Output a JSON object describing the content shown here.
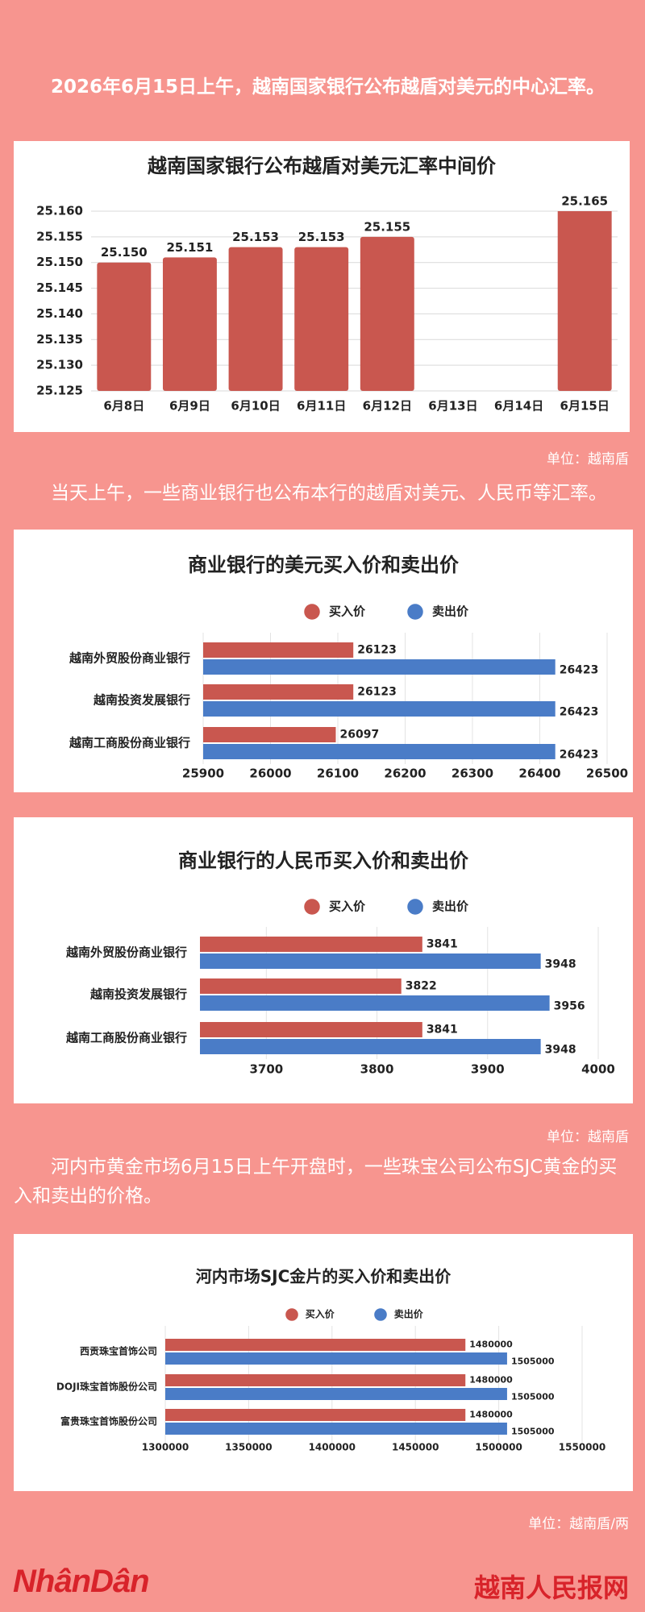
{
  "intro": "2026年6月15日上午，越南国家银行公布越盾对美元的中心汇率。",
  "unit_1": "单位：越南盾",
  "paragraph_2": "当天上午，一些商业银行也公布本行的越盾对美元、人民币等汇率。",
  "unit_2": "单位：越南盾",
  "paragraph_3": "河内市黄金市场6月15日上午开盘时，一些珠宝公司公布SJC黄金的买入和卖出的价格。",
  "unit_3": "单位：越南盾/两",
  "logo_left": "NhânDân",
  "logo_right": "越南人民报网",
  "chart_data": [
    {
      "type": "bar",
      "title": "越南国家银行公布越盾对美元汇率中间价",
      "categories": [
        "6月8日",
        "6月9日",
        "6月10日",
        "6月11日",
        "6月12日",
        "6月13日",
        "6月14日",
        "6月15日"
      ],
      "values": [
        25150,
        25151,
        25153,
        25153,
        25155,
        null,
        null,
        25165
      ],
      "value_labels": [
        "25.150",
        "25.151",
        "25.153",
        "25.153",
        "25.155",
        null,
        null,
        "25.165"
      ],
      "color": "#c9574f",
      "ylim": [
        25125,
        25160
      ],
      "yticks": [
        {
          "value": 25125,
          "label": "25.125"
        },
        {
          "value": 25130,
          "label": "25.130"
        },
        {
          "value": 25135,
          "label": "25.135"
        },
        {
          "value": 25140,
          "label": "25.140"
        },
        {
          "value": 25145,
          "label": "25.145"
        },
        {
          "value": 25150,
          "label": "25.150"
        },
        {
          "value": 25155,
          "label": "25.155"
        },
        {
          "value": 25160,
          "label": "25.160"
        }
      ],
      "grid": true
    },
    {
      "type": "hbar",
      "title": "商业银行的美元买入价和卖出价",
      "categories": [
        "越南外贸股份商业银行",
        "越南投资发展银行",
        "越南工商股份商业银行"
      ],
      "series": [
        {
          "name": "买入价",
          "color": "#c9574f",
          "values": [
            26123,
            26123,
            26097
          ]
        },
        {
          "name": "卖出价",
          "color": "#4a7cc7",
          "values": [
            26423,
            26423,
            26423
          ]
        }
      ],
      "xlim": [
        25900,
        26500
      ],
      "xticks": [
        25900,
        26000,
        26100,
        26200,
        26300,
        26400,
        26500
      ],
      "grid": true,
      "legend": "top"
    },
    {
      "type": "hbar",
      "title": "商业银行的人民币买入价和卖出价",
      "categories": [
        "越南外贸股份商业银行",
        "越南投资发展银行",
        "越南工商股份商业银行"
      ],
      "series": [
        {
          "name": "买入价",
          "color": "#c9574f",
          "values": [
            3841,
            3822,
            3841
          ]
        },
        {
          "name": "卖出价",
          "color": "#4a7cc7",
          "values": [
            3948,
            3956,
            3948
          ]
        }
      ],
      "xlim": [
        3640,
        4000
      ],
      "xticks": [
        3700,
        3800,
        3900,
        4000
      ],
      "grid": true,
      "legend": "top"
    },
    {
      "type": "hbar",
      "title": "河内市场SJC金片的买入价和卖出价",
      "categories": [
        "西贡珠宝首饰公司",
        "DOJI珠宝首饰股份公司",
        "富贵珠宝首饰股份公司"
      ],
      "series": [
        {
          "name": "买入价",
          "color": "#c9574f",
          "values": [
            1480000,
            1480000,
            1480000
          ]
        },
        {
          "name": "卖出价",
          "color": "#4a7cc7",
          "values": [
            1505000,
            1505000,
            1505000
          ]
        }
      ],
      "xlim": [
        1300000,
        1550000
      ],
      "xticks": [
        1300000,
        1350000,
        1400000,
        1450000,
        1500000,
        1550000
      ],
      "grid": true,
      "legend": "top"
    }
  ]
}
